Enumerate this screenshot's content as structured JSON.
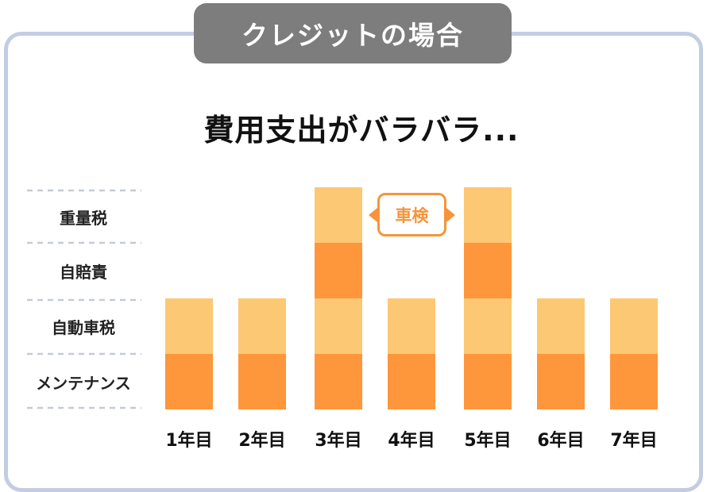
{
  "header": {
    "tab_label": "クレジットの場合"
  },
  "title": "費用支出がバラバラ...",
  "callout": {
    "label": "車検"
  },
  "colors": {
    "light": "#fdc873",
    "dark": "#fe963b",
    "frame": "#c3cde2",
    "header_bg": "#7d7d7d",
    "callout": "#f7943a",
    "divider": "#c5cad6"
  },
  "chart_data": {
    "type": "bar",
    "stacked": true,
    "categories": [
      "1年目",
      "2年目",
      "3年目",
      "4年目",
      "5年目",
      "6年目",
      "7年目"
    ],
    "row_labels": [
      "重量税",
      "自賠責",
      "自動車税",
      "メンテナンス"
    ],
    "series": [
      {
        "name": "メンテナンス",
        "values": [
          1,
          1,
          1,
          1,
          1,
          1,
          1
        ]
      },
      {
        "name": "自動車税",
        "values": [
          1,
          1,
          1,
          1,
          1,
          1,
          1
        ]
      },
      {
        "name": "自賠責",
        "values": [
          0,
          0,
          1,
          0,
          1,
          0,
          0
        ]
      },
      {
        "name": "重量税",
        "values": [
          0,
          0,
          1,
          0,
          1,
          0,
          0
        ]
      }
    ],
    "ylim": [
      0,
      4
    ],
    "grid": false
  }
}
